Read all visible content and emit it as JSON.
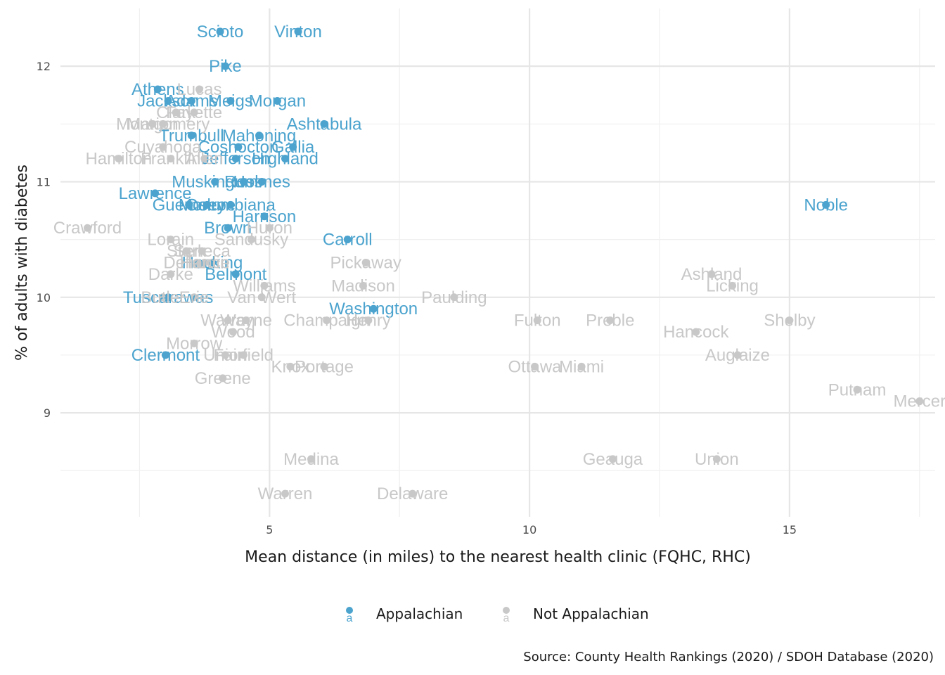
{
  "chart_data": {
    "type": "scatter",
    "xlabel": "Mean distance (in miles) to the nearest health clinic (FQHC, RHC)",
    "ylabel": "% of adults with diabetes",
    "xlim": [
      0.98,
      17.8
    ],
    "ylim": [
      8.1,
      12.5
    ],
    "x_ticks": [
      5,
      10,
      15
    ],
    "y_ticks": [
      9,
      10,
      11,
      12
    ],
    "grid": true,
    "legend_position": "bottom",
    "caption": "Source: County Health Rankings (2020) / SDOH Database (2020)",
    "legend_glyph": "a",
    "series": [
      {
        "name": "Appalachian",
        "color": "#4ba3ce",
        "points": [
          {
            "label": "Scioto",
            "x": 4.05,
            "y": 12.3
          },
          {
            "label": "Vinton",
            "x": 5.55,
            "y": 12.3
          },
          {
            "label": "Pike",
            "x": 4.15,
            "y": 12.0
          },
          {
            "label": "Athens",
            "x": 2.85,
            "y": 11.8
          },
          {
            "label": "Jackson",
            "x": 3.05,
            "y": 11.7
          },
          {
            "label": "Adams",
            "x": 3.5,
            "y": 11.7
          },
          {
            "label": "Meigs",
            "x": 4.25,
            "y": 11.7
          },
          {
            "label": "Morgan",
            "x": 5.15,
            "y": 11.7
          },
          {
            "label": "Ashtabula",
            "x": 6.05,
            "y": 11.5
          },
          {
            "label": "Trumbull",
            "x": 3.5,
            "y": 11.4
          },
          {
            "label": "Mahoning",
            "x": 4.8,
            "y": 11.4
          },
          {
            "label": "Coshocton",
            "x": 4.4,
            "y": 11.3
          },
          {
            "label": "Gallia",
            "x": 5.45,
            "y": 11.3
          },
          {
            "label": "Jefferson",
            "x": 4.35,
            "y": 11.2
          },
          {
            "label": "Highland",
            "x": 5.3,
            "y": 11.2
          },
          {
            "label": "Muskingum",
            "x": 3.95,
            "y": 11.0
          },
          {
            "label": "Ross",
            "x": 4.5,
            "y": 11.0
          },
          {
            "label": "Holmes",
            "x": 4.85,
            "y": 11.0
          },
          {
            "label": "Lawrence",
            "x": 2.8,
            "y": 10.9
          },
          {
            "label": "Guernsey",
            "x": 3.45,
            "y": 10.8
          },
          {
            "label": "Monroe",
            "x": 3.8,
            "y": 10.8
          },
          {
            "label": "Columbiana",
            "x": 4.25,
            "y": 10.8
          },
          {
            "label": "Noble",
            "x": 15.7,
            "y": 10.8
          },
          {
            "label": "Harrison",
            "x": 4.9,
            "y": 10.7
          },
          {
            "label": "Brown",
            "x": 4.2,
            "y": 10.6
          },
          {
            "label": "Carroll",
            "x": 6.5,
            "y": 10.5
          },
          {
            "label": "Hocking",
            "x": 3.9,
            "y": 10.3
          },
          {
            "label": "Belmont",
            "x": 4.35,
            "y": 10.2
          },
          {
            "label": "Tuscarawas",
            "x": 3.05,
            "y": 10.0
          },
          {
            "label": "Washington",
            "x": 7.0,
            "y": 9.9
          },
          {
            "label": "Clermont",
            "x": 3.0,
            "y": 9.5
          }
        ]
      },
      {
        "name": "Not Appalachian",
        "color": "#c8c8c8",
        "points": [
          {
            "label": "Lucas",
            "x": 3.65,
            "y": 11.8
          },
          {
            "label": "Clark",
            "x": 3.2,
            "y": 11.6
          },
          {
            "label": "Fayette",
            "x": 3.55,
            "y": 11.6
          },
          {
            "label": "Marion",
            "x": 2.75,
            "y": 11.5
          },
          {
            "label": "Montgomery",
            "x": 2.95,
            "y": 11.5
          },
          {
            "label": "Cuyahoga",
            "x": 2.95,
            "y": 11.3
          },
          {
            "label": "Hamilton",
            "x": 2.1,
            "y": 11.2
          },
          {
            "label": "Franklin",
            "x": 3.1,
            "y": 11.2
          },
          {
            "label": "Allen",
            "x": 3.75,
            "y": 11.2
          },
          {
            "label": "Crawford",
            "x": 1.5,
            "y": 10.6
          },
          {
            "label": "Huron",
            "x": 5.0,
            "y": 10.6
          },
          {
            "label": "Lorain",
            "x": 3.1,
            "y": 10.5
          },
          {
            "label": "Sandusky",
            "x": 4.65,
            "y": 10.5
          },
          {
            "label": "Stark",
            "x": 3.4,
            "y": 10.4
          },
          {
            "label": "Seneca",
            "x": 3.7,
            "y": 10.4
          },
          {
            "label": "Defiance",
            "x": 3.6,
            "y": 10.3
          },
          {
            "label": "Hardin",
            "x": 3.75,
            "y": 10.3
          },
          {
            "label": "Pickaway",
            "x": 6.85,
            "y": 10.3
          },
          {
            "label": "Darke",
            "x": 3.1,
            "y": 10.2
          },
          {
            "label": "Ashland",
            "x": 13.5,
            "y": 10.2
          },
          {
            "label": "Williams",
            "x": 4.9,
            "y": 10.1
          },
          {
            "label": "Madison",
            "x": 6.8,
            "y": 10.1
          },
          {
            "label": "Licking",
            "x": 13.9,
            "y": 10.1
          },
          {
            "label": "Butler",
            "x": 2.95,
            "y": 10.0
          },
          {
            "label": "Erie",
            "x": 3.55,
            "y": 10.0
          },
          {
            "label": "Van Wert",
            "x": 4.85,
            "y": 10.0
          },
          {
            "label": "Paulding",
            "x": 8.55,
            "y": 10.0
          },
          {
            "label": "Warren",
            "x": 4.2,
            "y": 9.8
          },
          {
            "label": "Wayne",
            "x": 4.55,
            "y": 9.8
          },
          {
            "label": "Champaign",
            "x": 6.1,
            "y": 9.8
          },
          {
            "label": "Henry",
            "x": 6.9,
            "y": 9.8
          },
          {
            "label": "Fulton",
            "x": 10.15,
            "y": 9.8
          },
          {
            "label": "Preble",
            "x": 11.55,
            "y": 9.8
          },
          {
            "label": "Shelby",
            "x": 15.0,
            "y": 9.8
          },
          {
            "label": "Wood",
            "x": 4.3,
            "y": 9.7
          },
          {
            "label": "Hancock",
            "x": 13.2,
            "y": 9.7
          },
          {
            "label": "Morrow",
            "x": 3.55,
            "y": 9.6
          },
          {
            "label": "Union",
            "x": 4.15,
            "y": 9.5
          },
          {
            "label": "Fairfield",
            "x": 4.5,
            "y": 9.5
          },
          {
            "label": "Auglaize",
            "x": 14.0,
            "y": 9.5
          },
          {
            "label": "Knox",
            "x": 5.4,
            "y": 9.4
          },
          {
            "label": "Portage",
            "x": 6.05,
            "y": 9.4
          },
          {
            "label": "Ottawa",
            "x": 10.1,
            "y": 9.4
          },
          {
            "label": "Miami",
            "x": 11.0,
            "y": 9.4
          },
          {
            "label": "Greene",
            "x": 4.1,
            "y": 9.3
          },
          {
            "label": "Putnam",
            "x": 16.3,
            "y": 9.2
          },
          {
            "label": "Mercer",
            "x": 17.5,
            "y": 9.1
          },
          {
            "label": "Medina",
            "x": 5.8,
            "y": 8.6
          },
          {
            "label": "Geauga",
            "x": 11.6,
            "y": 8.6
          },
          {
            "label": "Union",
            "x": 13.6,
            "y": 8.6
          },
          {
            "label": "Warren",
            "x": 5.3,
            "y": 8.3
          },
          {
            "label": "Delaware",
            "x": 7.75,
            "y": 8.3
          }
        ]
      }
    ]
  }
}
